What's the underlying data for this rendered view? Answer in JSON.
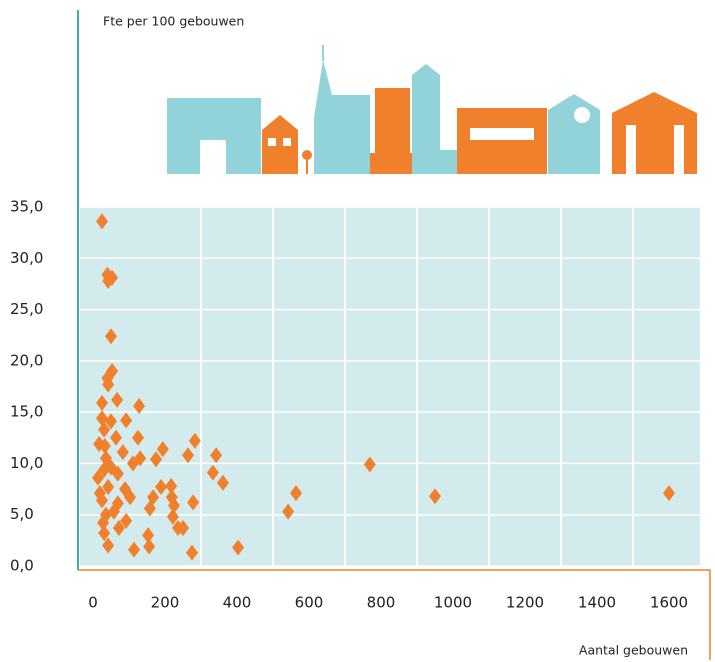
{
  "chart_data": {
    "type": "scatter",
    "y_label": "Fte per 100 gebouwen",
    "x_label": "Aantal gebouwen",
    "color": "#f0802c",
    "grid": true,
    "xlim": [
      0,
      1600
    ],
    "ylim": [
      0,
      35
    ],
    "xticks": [
      0,
      200,
      400,
      600,
      800,
      1000,
      1200,
      1400,
      1600
    ],
    "yticks": [
      {
        "value": 0,
        "label": "0,0"
      },
      {
        "value": 5,
        "label": "5,0"
      },
      {
        "value": 10,
        "label": "10,0"
      },
      {
        "value": 15,
        "label": "15,0"
      },
      {
        "value": 20,
        "label": "20,0"
      },
      {
        "value": 25,
        "label": "25,0"
      },
      {
        "value": 30,
        "label": "30,0"
      },
      {
        "value": 35,
        "label": "35,0"
      }
    ],
    "x": [
      25,
      40,
      42,
      53,
      50,
      53,
      40,
      42,
      67,
      25,
      25,
      50,
      92,
      128,
      31,
      64,
      125,
      17,
      33,
      83,
      194,
      283,
      36,
      131,
      111,
      175,
      264,
      342,
      14,
      50,
      31,
      69,
      333,
      361,
      189,
      217,
      42,
      19,
      89,
      167,
      219,
      103,
      25,
      69,
      278,
      225,
      36,
      58,
      158,
      28,
      92,
      222,
      31,
      72,
      153,
      236,
      250,
      42,
      114,
      156,
      275,
      403,
      542,
      564,
      769,
      950,
      1600
    ],
    "y": [
      33.6,
      28.4,
      27.8,
      28.1,
      22.4,
      19.0,
      18.3,
      17.7,
      16.2,
      15.9,
      14.4,
      14.1,
      14.2,
      15.6,
      13.3,
      12.5,
      12.5,
      11.9,
      11.7,
      11.1,
      11.4,
      12.2,
      10.5,
      10.5,
      10.0,
      10.4,
      10.8,
      10.8,
      8.6,
      9.6,
      9.4,
      9.0,
      9.1,
      8.1,
      7.7,
      7.8,
      7.7,
      7.1,
      7.5,
      6.7,
      6.7,
      6.7,
      6.4,
      6.1,
      6.2,
      5.9,
      5.0,
      5.3,
      5.6,
      4.2,
      4.4,
      4.8,
      3.2,
      3.7,
      3.0,
      3.7,
      3.7,
      2.0,
      1.6,
      1.9,
      1.3,
      1.8,
      5.3,
      7.1,
      9.9,
      6.8,
      7.1
    ]
  }
}
